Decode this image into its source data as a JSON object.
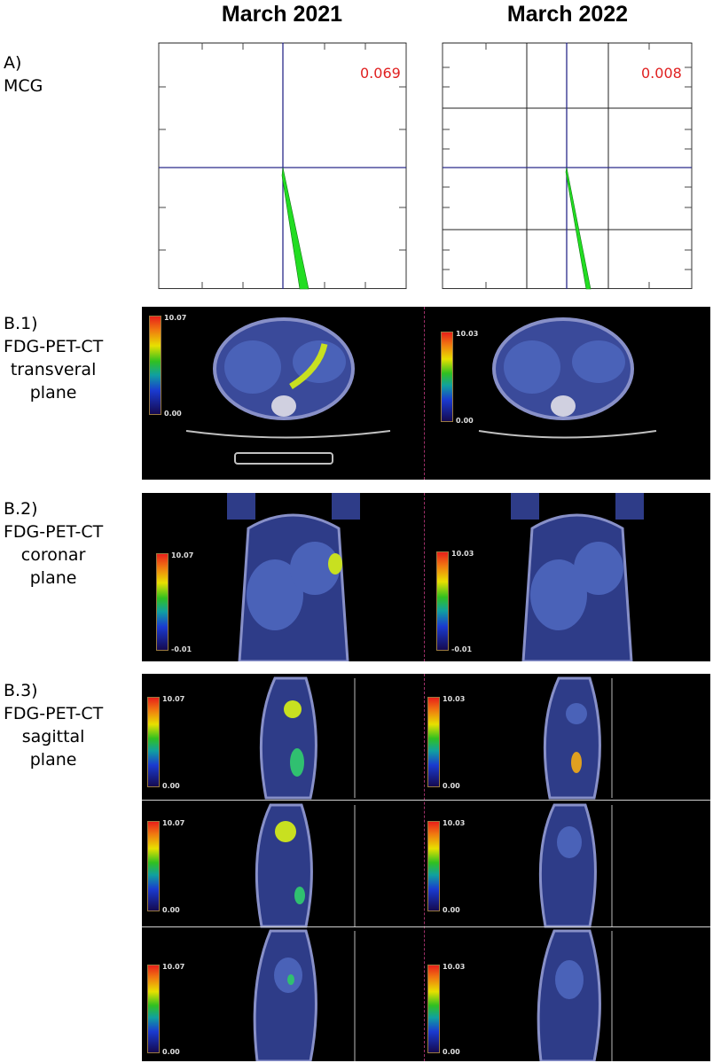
{
  "columns": [
    "March 2021",
    "March 2022"
  ],
  "rows": {
    "a": {
      "lines": [
        "A)",
        "MCG"
      ]
    },
    "b1": {
      "lines": [
        "B.1)",
        "FDG-PET-CT",
        "transveral",
        "plane"
      ]
    },
    "b2": {
      "lines": [
        "B.2)",
        "FDG-PET-CT",
        "coronar",
        "plane"
      ]
    },
    "b3": {
      "lines": [
        "B.3)",
        "FDG-PET-CT",
        "sagittal",
        "plane"
      ]
    }
  },
  "mcg": [
    {
      "value": "0.069"
    },
    {
      "value": "0.008"
    }
  ],
  "scales": {
    "b1": [
      {
        "max": "10.07",
        "min": "0.00"
      },
      {
        "max": "10.03",
        "min": "0.00"
      }
    ],
    "b2": [
      {
        "max": "10.07",
        "min": "-0.01"
      },
      {
        "max": "10.03",
        "min": "-0.01"
      }
    ],
    "b3": [
      [
        {
          "max": "10.07",
          "min": "0.00"
        },
        {
          "max": "10.03",
          "min": "0.00"
        }
      ],
      [
        {
          "max": "10.07",
          "min": "0.00"
        },
        {
          "max": "10.03",
          "min": "0.00"
        }
      ],
      [
        {
          "max": "10.07",
          "min": "0.00"
        },
        {
          "max": "10.03",
          "min": "0.00"
        }
      ]
    ]
  },
  "colors": {
    "mcg_value": "#e02020",
    "axis": "#2a2a8a",
    "arrow": "#22dd22"
  }
}
